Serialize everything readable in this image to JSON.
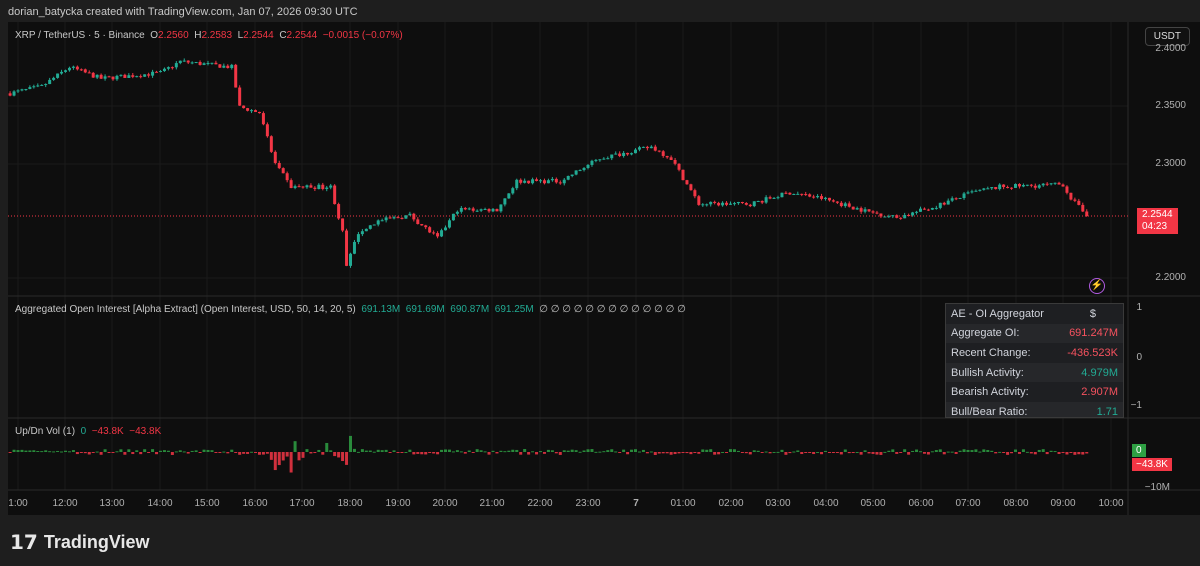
{
  "credit": "dorian_batycka created with TradingView.com, Jan 07, 2026 09:30 UTC",
  "symbol": {
    "title": "XRP / TetherUS · 5 · Binance",
    "o_label": "O",
    "o": "2.2560",
    "h_label": "H",
    "h": "2.2583",
    "l_label": "L",
    "l": "2.2544",
    "c_label": "C",
    "c": "2.2544",
    "change": "−0.0015 (−0.07%)"
  },
  "currency": "USDT",
  "price_axis": [
    "2.4000",
    "2.3500",
    "2.3000",
    "2.2000"
  ],
  "last_price": {
    "price": "2.2544",
    "countdown": "04:23"
  },
  "oi_legend": {
    "title": "Aggregated Open Interest [Alpha Extract] (Open Interest, USD, 50, 14, 20, 5)",
    "values": [
      "691.13M",
      "691.69M",
      "690.87M",
      "691.25M"
    ],
    "empties": "∅ ∅ ∅ ∅ ∅ ∅ ∅ ∅ ∅ ∅ ∅ ∅ ∅"
  },
  "oi_axis": [
    "1",
    "0",
    "−1"
  ],
  "oi_table": {
    "title": "AE - OI Aggregator",
    "currency": "$",
    "rows": [
      {
        "label": "Aggregate OI:",
        "value": "691.247M",
        "color": "#f7525f"
      },
      {
        "label": "Recent Change:",
        "value": "-436.523K",
        "color": "#f7525f"
      },
      {
        "label": "Bullish Activity:",
        "value": "4.979M",
        "color": "#22ab94"
      },
      {
        "label": "Bearish Activity:",
        "value": "2.907M",
        "color": "#f7525f"
      },
      {
        "label": "Bull/Bear Ratio:",
        "value": "1.71",
        "color": "#22ab94"
      }
    ]
  },
  "vol_legend": {
    "title": "Up/Dn Vol (1)",
    "v1": "0",
    "v2": "−43.8K",
    "v3": "−43.8K"
  },
  "vol_axis": {
    "up_badge": "0",
    "down_badge": "−43.8K",
    "tick": "−10M"
  },
  "time_axis": [
    "1:00",
    "12:00",
    "13:00",
    "14:00",
    "15:00",
    "16:00",
    "17:00",
    "18:00",
    "19:00",
    "20:00",
    "21:00",
    "22:00",
    "23:00",
    "7",
    "01:00",
    "02:00",
    "03:00",
    "04:00",
    "05:00",
    "06:00",
    "07:00",
    "08:00",
    "09:00",
    "10:00"
  ],
  "brand": "TradingView",
  "colors": {
    "up": "#22ab94",
    "down": "#f23645",
    "background": "#0e0e0e"
  },
  "chart_data": {
    "type": "candlestick",
    "interval": "5m",
    "ylim": [
      2.19,
      2.405
    ],
    "close_path": [
      [
        "06 10:50",
        2.362
      ],
      [
        "06 11:30",
        2.368
      ],
      [
        "06 12:05",
        2.385
      ],
      [
        "06 12:45",
        2.375
      ],
      [
        "06 14:00",
        2.38
      ],
      [
        "06 14:25",
        2.39
      ],
      [
        "06 15:30",
        2.385
      ],
      [
        "06 15:40",
        2.35
      ],
      [
        "06 16:05",
        2.345
      ],
      [
        "06 16:25",
        2.3
      ],
      [
        "06 16:45",
        2.28
      ],
      [
        "06 17:10",
        2.28
      ],
      [
        "06 17:35",
        2.28
      ],
      [
        "06 17:50",
        2.24
      ],
      [
        "06 17:55",
        2.21
      ],
      [
        "06 18:10",
        2.24
      ],
      [
        "06 18:35",
        2.25
      ],
      [
        "06 19:15",
        2.255
      ],
      [
        "06 19:50",
        2.235
      ],
      [
        "06 20:15",
        2.26
      ],
      [
        "06 21:05",
        2.26
      ],
      [
        "06 21:30",
        2.285
      ],
      [
        "06 22:25",
        2.285
      ],
      [
        "06 23:15",
        2.305
      ],
      [
        "07 00:20",
        2.315
      ],
      [
        "07 00:45",
        2.305
      ],
      [
        "07 01:20",
        2.265
      ],
      [
        "07 02:25",
        2.265
      ],
      [
        "07 03:15",
        2.275
      ],
      [
        "07 03:55",
        2.27
      ],
      [
        "07 04:55",
        2.258
      ],
      [
        "07 05:30",
        2.253
      ],
      [
        "07 06:15",
        2.262
      ],
      [
        "07 07:05",
        2.275
      ],
      [
        "07 07:40",
        2.28
      ],
      [
        "07 09:00",
        2.282
      ],
      [
        "07 09:10",
        2.27
      ],
      [
        "07 09:30",
        2.2544
      ]
    ]
  }
}
